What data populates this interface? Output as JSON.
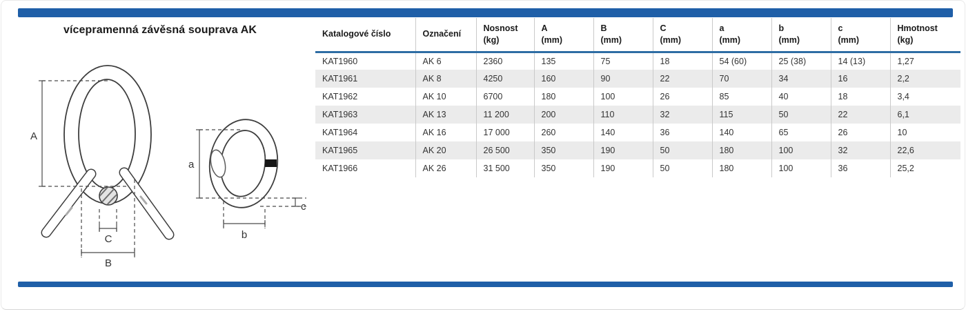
{
  "page": {
    "title": "vícepramenná závěsná souprava AK"
  },
  "colors": {
    "accent_blue": "#1f5fa8",
    "header_rule_blue": "#2e6da4",
    "row_alt": "#ebebeb",
    "grid_line": "#c9c9c9",
    "text_primary": "#1a1a1a",
    "text_body": "#333333",
    "drawing_line": "#3d3d3d",
    "card_border": "#d6d6d6"
  },
  "diagram": {
    "labels": {
      "A": "A",
      "B": "B",
      "C": "C",
      "a": "a",
      "b": "b",
      "c": "c"
    }
  },
  "table": {
    "columns": [
      {
        "label": "Katalogové číslo",
        "unit": ""
      },
      {
        "label": "Označení",
        "unit": ""
      },
      {
        "label": "Nosnost",
        "unit": "(kg)"
      },
      {
        "label": "A",
        "unit": "(mm)"
      },
      {
        "label": "B",
        "unit": "(mm)"
      },
      {
        "label": "C",
        "unit": "(mm)"
      },
      {
        "label": "a",
        "unit": "(mm)"
      },
      {
        "label": "b",
        "unit": "(mm)"
      },
      {
        "label": "c",
        "unit": "(mm)"
      },
      {
        "label": "Hmotnost",
        "unit": "(kg)"
      }
    ],
    "rows": [
      [
        "KAT1960",
        "AK 6",
        "2360",
        "135",
        "75",
        "18",
        "54 (60)",
        "25 (38)",
        "14 (13)",
        "1,27"
      ],
      [
        "KAT1961",
        "AK 8",
        "4250",
        "160",
        "90",
        "22",
        "70",
        "34",
        "16",
        "2,2"
      ],
      [
        "KAT1962",
        "AK 10",
        "6700",
        "180",
        "100",
        "26",
        "85",
        "40",
        "18",
        "3,4"
      ],
      [
        "KAT1963",
        "AK 13",
        "11 200",
        "200",
        "110",
        "32",
        "115",
        "50",
        "22",
        "6,1"
      ],
      [
        "KAT1964",
        "AK 16",
        "17 000",
        "260",
        "140",
        "36",
        "140",
        "65",
        "26",
        "10"
      ],
      [
        "KAT1965",
        "AK 20",
        "26 500",
        "350",
        "190",
        "50",
        "180",
        "100",
        "32",
        "22,6"
      ],
      [
        "KAT1966",
        "AK 26",
        "31 500",
        "350",
        "190",
        "50",
        "180",
        "100",
        "36",
        "25,2"
      ]
    ]
  }
}
